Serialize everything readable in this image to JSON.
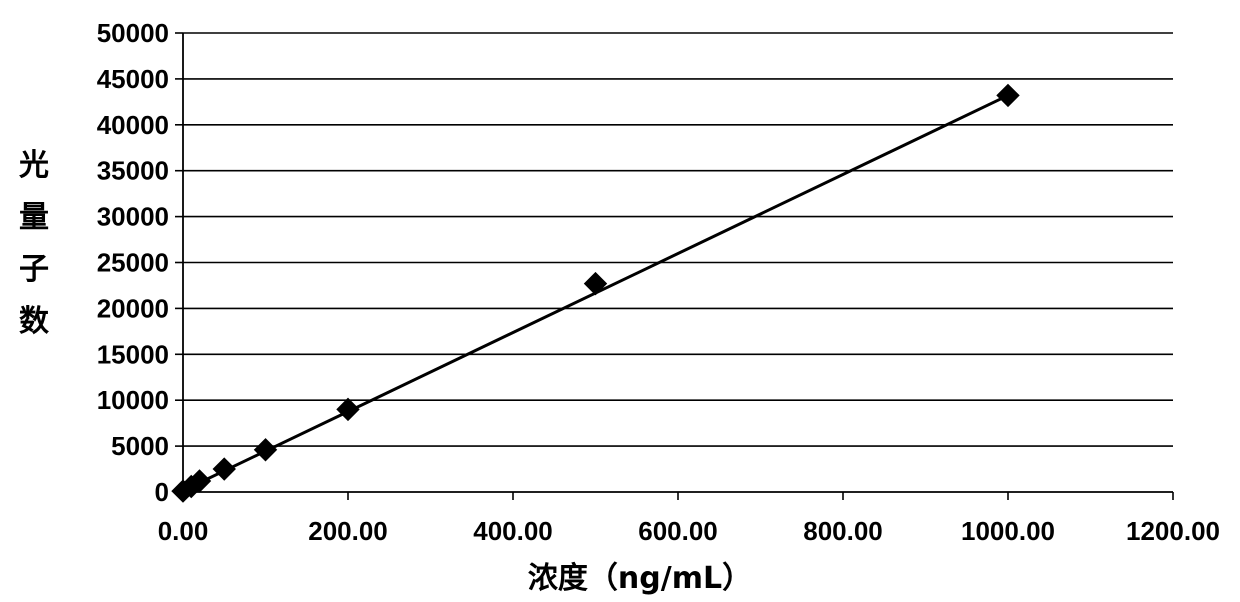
{
  "chart_data": {
    "type": "scatter",
    "title": "",
    "xlabel": "浓度（ng/mL）",
    "ylabel": "光量子数",
    "xlim": [
      0,
      1200
    ],
    "ylim": [
      0,
      50000
    ],
    "x_ticks": [
      "0.00",
      "200.00",
      "400.00",
      "600.00",
      "800.00",
      "1000.00",
      "1200.00"
    ],
    "y_ticks": [
      "0",
      "5000",
      "10000",
      "15000",
      "20000",
      "25000",
      "30000",
      "35000",
      "40000",
      "45000",
      "50000"
    ],
    "grid": "horizontal",
    "legend": "none",
    "series": [
      {
        "marker": "diamond",
        "color": "#000000",
        "x": [
          0,
          10,
          20,
          50,
          100,
          200,
          500,
          1000
        ],
        "y": [
          100,
          600,
          1200,
          2500,
          4600,
          9000,
          22700,
          43200
        ]
      }
    ],
    "trendline": {
      "type": "linear",
      "from": [
        0,
        150
      ],
      "to": [
        1000,
        43200
      ],
      "color": "#000000"
    }
  }
}
